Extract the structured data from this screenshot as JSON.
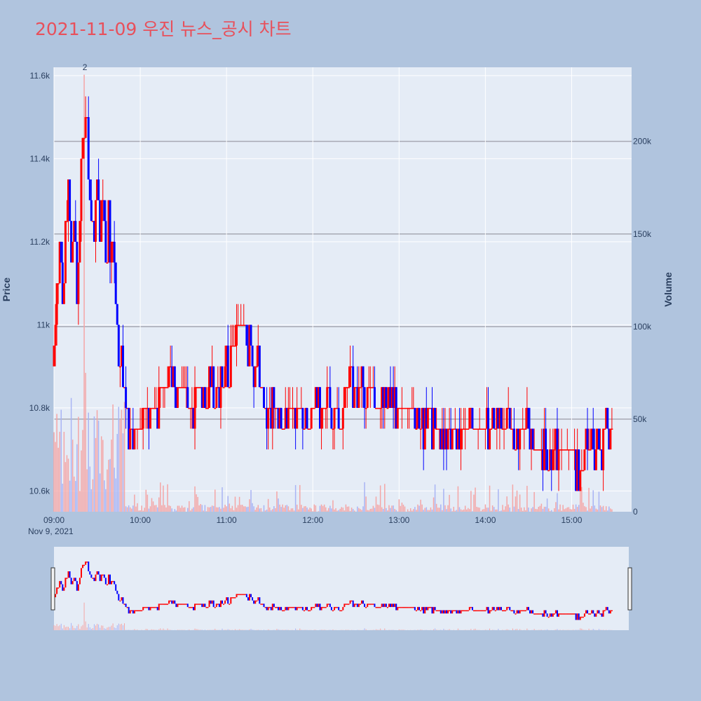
{
  "title": "2021-11-09 우진 뉴스_공시 차트",
  "colors": {
    "up": "#ff0000",
    "down": "#0000ff",
    "plot_bg": "#e5ecf6",
    "paper_bg": "#b0c4de",
    "title": "#e8505b",
    "volume_up": "#f4a6a6",
    "volume_down": "#a9b4f4"
  },
  "chart_data": {
    "type": "candlestick",
    "x_axis": {
      "range": [
        "09:00",
        "15:30"
      ],
      "ticks": [
        "09:00",
        "10:00",
        "11:00",
        "12:00",
        "13:00",
        "14:00",
        "15:00"
      ],
      "date_label": "Nov 9, 2021"
    },
    "price_axis": {
      "title": "Price",
      "range": [
        10550,
        11620
      ],
      "ticks": [
        10600,
        10800,
        11000,
        11200,
        11400,
        11600
      ],
      "tick_labels": [
        "10.6k",
        "10.8k",
        "11k",
        "11.2k",
        "11.4k",
        "11.6k"
      ]
    },
    "volume_axis": {
      "title": "Volume",
      "range": [
        0,
        240000
      ],
      "ticks": [
        0,
        50000,
        100000,
        150000,
        200000
      ],
      "tick_labels": [
        "0",
        "50k",
        "100k",
        "150k",
        "200k"
      ]
    },
    "annotations": [
      {
        "time": "09:21",
        "text": "2"
      }
    ],
    "price_path": [
      [
        "09:00",
        10900
      ],
      [
        "09:02",
        11050
      ],
      [
        "09:04",
        11150
      ],
      [
        "09:06",
        11000
      ],
      [
        "09:08",
        11250
      ],
      [
        "09:10",
        11350
      ],
      [
        "09:12",
        11200
      ],
      [
        "09:14",
        11300
      ],
      [
        "09:16",
        11100
      ],
      [
        "09:18",
        11300
      ],
      [
        "09:20",
        11400
      ],
      [
        "09:22",
        11500
      ],
      [
        "09:24",
        11350
      ],
      [
        "09:26",
        11200
      ],
      [
        "09:28",
        11150
      ],
      [
        "09:30",
        11300
      ],
      [
        "09:32",
        11200
      ],
      [
        "09:34",
        11250
      ],
      [
        "09:36",
        11150
      ],
      [
        "09:38",
        11250
      ],
      [
        "09:40",
        11150
      ],
      [
        "09:42",
        11100
      ],
      [
        "09:44",
        11000
      ],
      [
        "09:46",
        10900
      ],
      [
        "09:48",
        10850
      ],
      [
        "09:50",
        10800
      ],
      [
        "09:52",
        10750
      ],
      [
        "09:55",
        10700
      ],
      [
        "09:58",
        10750
      ],
      [
        "10:00",
        10800
      ],
      [
        "10:05",
        10800
      ],
      [
        "10:10",
        10800
      ],
      [
        "10:15",
        10850
      ],
      [
        "10:20",
        10900
      ],
      [
        "10:25",
        10850
      ],
      [
        "10:30",
        10850
      ],
      [
        "10:35",
        10800
      ],
      [
        "10:40",
        10850
      ],
      [
        "10:45",
        10800
      ],
      [
        "10:50",
        10850
      ],
      [
        "10:55",
        10850
      ],
      [
        "11:00",
        10900
      ],
      [
        "11:05",
        10950
      ],
      [
        "11:08",
        11000
      ],
      [
        "11:12",
        11000
      ],
      [
        "11:15",
        10950
      ],
      [
        "11:20",
        10900
      ],
      [
        "11:25",
        10850
      ],
      [
        "11:30",
        10800
      ],
      [
        "11:35",
        10800
      ],
      [
        "11:40",
        10750
      ],
      [
        "11:45",
        10800
      ],
      [
        "11:50",
        10800
      ],
      [
        "11:55",
        10750
      ],
      [
        "12:00",
        10800
      ],
      [
        "12:05",
        10800
      ],
      [
        "12:10",
        10800
      ],
      [
        "12:15",
        10800
      ],
      [
        "12:20",
        10800
      ],
      [
        "12:25",
        10850
      ],
      [
        "12:30",
        10850
      ],
      [
        "12:35",
        10850
      ],
      [
        "12:40",
        10850
      ],
      [
        "12:45",
        10800
      ],
      [
        "12:50",
        10800
      ],
      [
        "12:55",
        10800
      ],
      [
        "13:00",
        10800
      ],
      [
        "13:05",
        10800
      ],
      [
        "13:10",
        10800
      ],
      [
        "13:15",
        10750
      ],
      [
        "13:20",
        10800
      ],
      [
        "13:25",
        10750
      ],
      [
        "13:30",
        10750
      ],
      [
        "13:35",
        10750
      ],
      [
        "13:40",
        10750
      ],
      [
        "13:45",
        10750
      ],
      [
        "13:50",
        10750
      ],
      [
        "13:55",
        10750
      ],
      [
        "14:00",
        10750
      ],
      [
        "14:05",
        10750
      ],
      [
        "14:10",
        10750
      ],
      [
        "14:15",
        10750
      ],
      [
        "14:20",
        10750
      ],
      [
        "14:25",
        10750
      ],
      [
        "14:30",
        10750
      ],
      [
        "14:35",
        10700
      ],
      [
        "14:40",
        10700
      ],
      [
        "14:45",
        10650
      ],
      [
        "14:50",
        10700
      ],
      [
        "14:55",
        10700
      ],
      [
        "15:00",
        10700
      ],
      [
        "15:05",
        10650
      ],
      [
        "15:10",
        10700
      ],
      [
        "15:15",
        10700
      ],
      [
        "15:20",
        10700
      ],
      [
        "15:25",
        10750
      ],
      [
        "15:28",
        10800
      ]
    ]
  }
}
